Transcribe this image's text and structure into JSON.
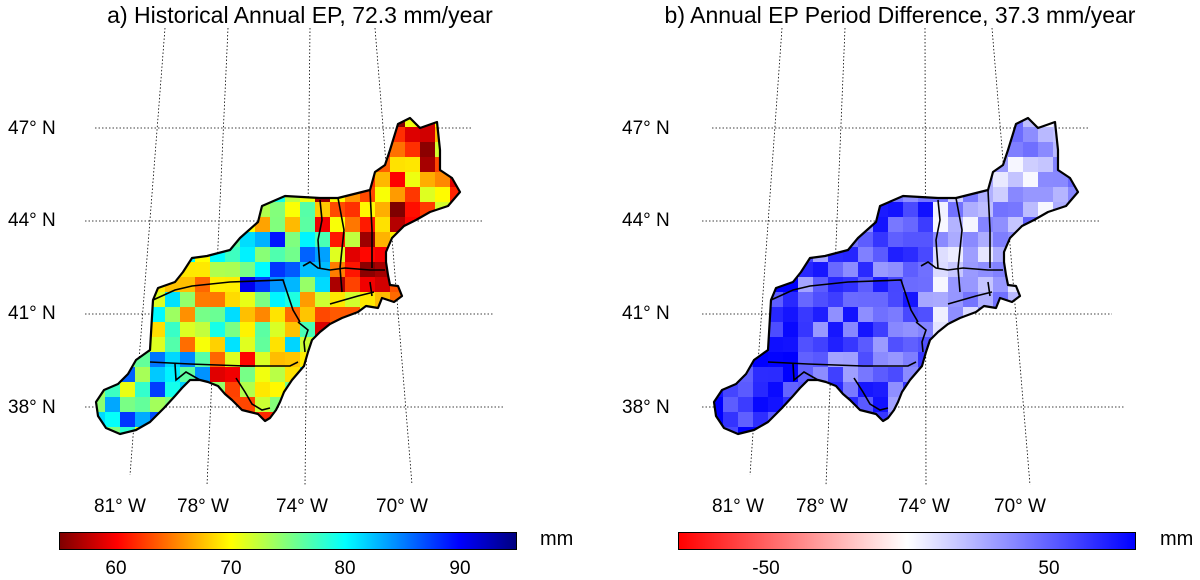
{
  "panels": [
    {
      "title": "a) Historical Annual EP, 72.3 mm/year",
      "lat_labels": [
        "47° N",
        "44° N",
        "41° N",
        "38° N"
      ],
      "lon_labels": [
        "81° W",
        "78° W",
        "74° W",
        "70° W"
      ],
      "colorbar": {
        "unit": "mm",
        "min": 55,
        "max": 95,
        "ticks": [
          "60",
          "70",
          "80",
          "90"
        ],
        "colormap": "jet"
      }
    },
    {
      "title": "b) Annual EP Period Difference, 37.3 mm/year",
      "lat_labels": [
        "47° N",
        "44° N",
        "41° N",
        "38° N"
      ],
      "lon_labels": [
        "81° W",
        "78° W",
        "74° W",
        "70° W"
      ],
      "colorbar": {
        "unit": "mm",
        "min": -80,
        "max": 80,
        "ticks": [
          "-50",
          "0",
          "50"
        ],
        "colormap": "red-white-blue"
      }
    }
  ],
  "colors": {
    "outline": "#000000",
    "graticule": "#000000"
  }
}
